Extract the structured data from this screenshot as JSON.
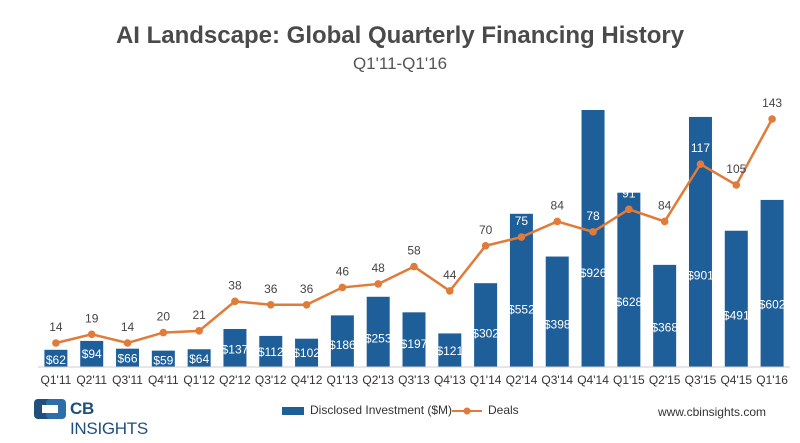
{
  "chart_data": {
    "type": "bar",
    "title": "AI Landscape: Global Quarterly Financing History",
    "subtitle": "Q1'11-Q1'16",
    "categories": [
      "Q1'11",
      "Q2'11",
      "Q3'11",
      "Q4'11",
      "Q1'12",
      "Q2'12",
      "Q3'12",
      "Q4'12",
      "Q1'13",
      "Q2'13",
      "Q3'13",
      "Q4'13",
      "Q1'14",
      "Q2'14",
      "Q3'14",
      "Q4'14",
      "Q1'15",
      "Q2'15",
      "Q3'15",
      "Q4'15",
      "Q1'16"
    ],
    "series": [
      {
        "name": "Disclosed Investment ($M)",
        "type": "bar",
        "color": "#1f5f99",
        "values": [
          62,
          94,
          66,
          59,
          64,
          137,
          112,
          102,
          186,
          253,
          197,
          121,
          302,
          552,
          398,
          926,
          628,
          368,
          901,
          491,
          602
        ],
        "labels": [
          "$62",
          "$94",
          "$66",
          "$59",
          "$64",
          "$137",
          "$112",
          "$102",
          "$186",
          "$253",
          "$197",
          "$121",
          "$302",
          "$552",
          "$398",
          "$926",
          "$628",
          "$368",
          "$901",
          "$491",
          "$602"
        ]
      },
      {
        "name": "Deals",
        "type": "line",
        "color": "#e07b39",
        "values": [
          14,
          19,
          14,
          20,
          21,
          38,
          36,
          36,
          46,
          48,
          58,
          44,
          70,
          75,
          84,
          78,
          91,
          84,
          117,
          105,
          143
        ]
      }
    ],
    "legend": "bottom",
    "grid": false
  },
  "logo": {
    "brand": "CB",
    "name": "INSIGHTS"
  },
  "footer": {
    "url": "www.cbinsights.com"
  }
}
